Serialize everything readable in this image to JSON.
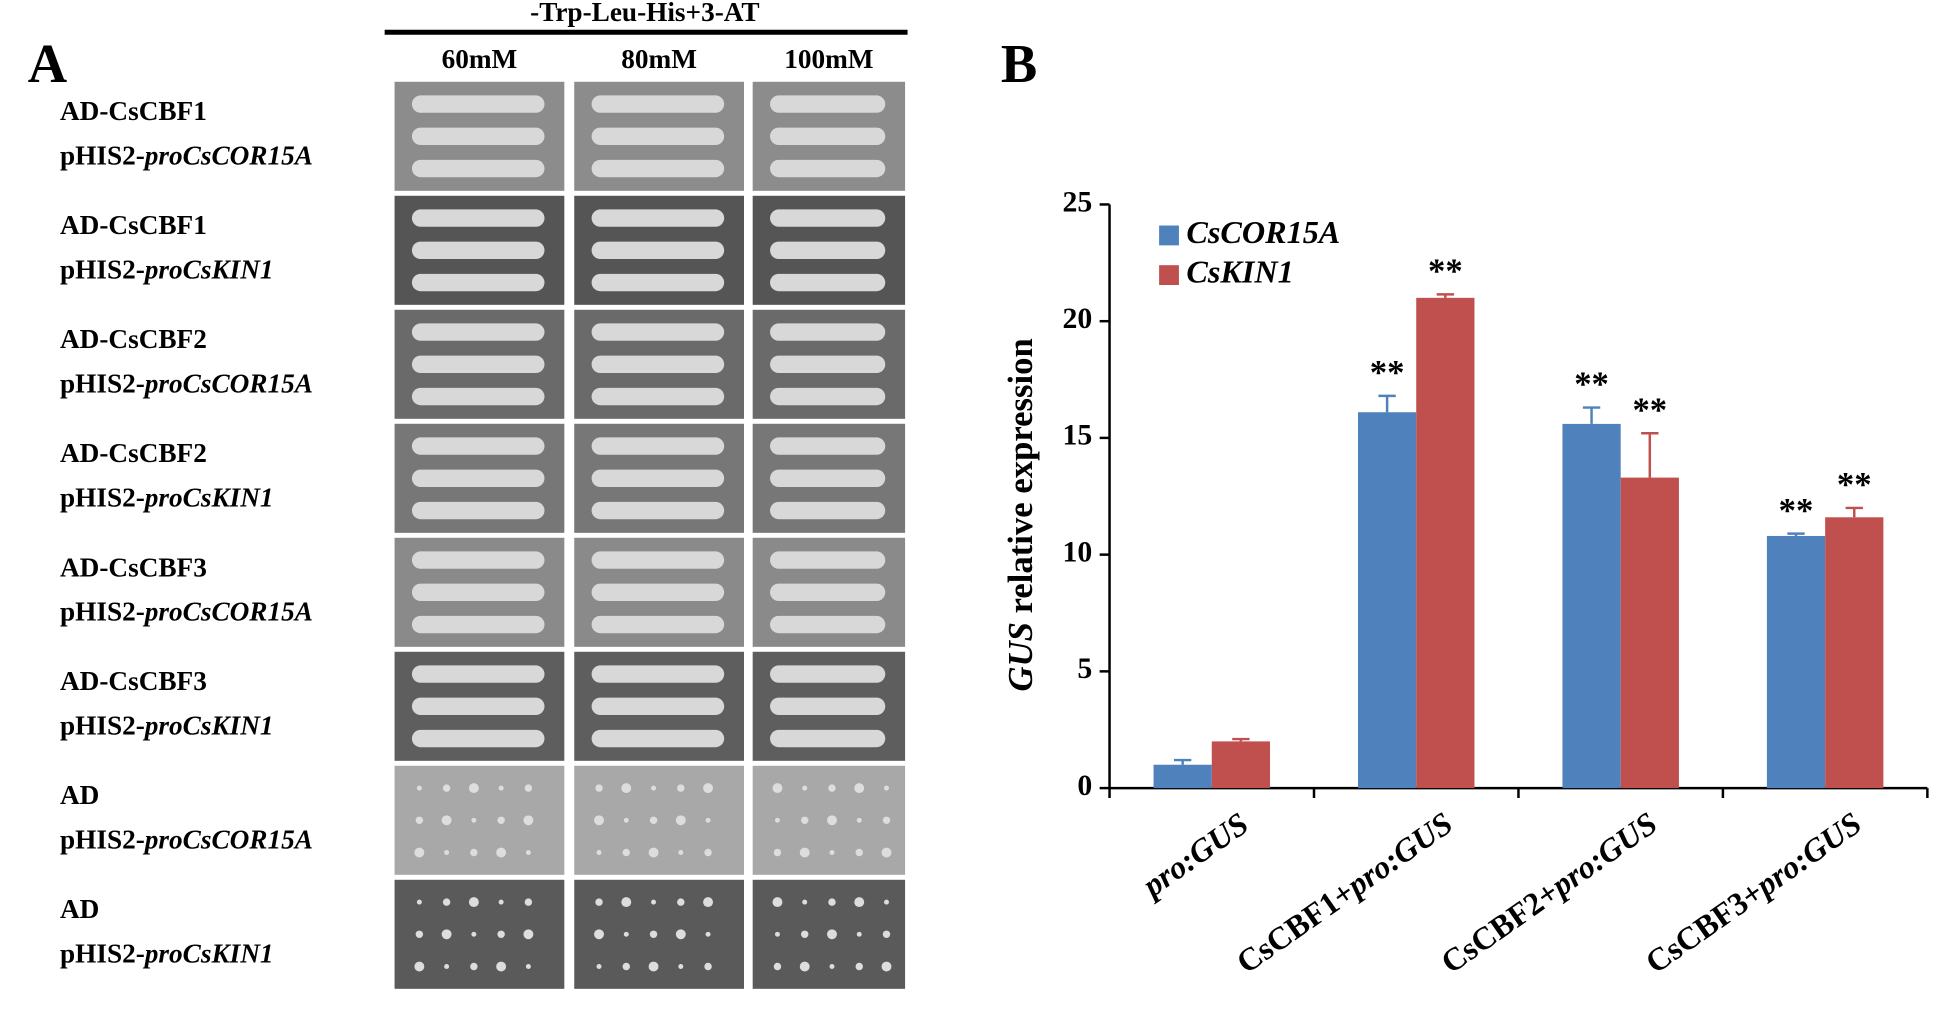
{
  "panel_a": {
    "label": "A",
    "header": "-Trp-Leu-His+3-AT",
    "columns": [
      "60mM",
      "80mM",
      "100mM"
    ],
    "rows": [
      {
        "line1": "AD-CsCBF1",
        "line2": "pHIS2-proCsCOR15A"
      },
      {
        "line1": "AD-CsCBF1",
        "line2": "pHIS2-proCsKIN1"
      },
      {
        "line1": "AD-CsCBF2",
        "line2": "pHIS2-proCsCOR15A"
      },
      {
        "line1": "AD-CsCBF2",
        "line2": "pHIS2-proCsKIN1"
      },
      {
        "line1": "AD-CsCBF3",
        "line2": "pHIS2-proCsCOR15A"
      },
      {
        "line1": "AD-CsCBF3",
        "line2": "pHIS2-proCsKIN1"
      },
      {
        "line1": "AD",
        "line2": "pHIS2-proCsCOR15A"
      },
      {
        "line1": "AD",
        "line2": "pHIS2-proCsKIN1"
      }
    ]
  },
  "panel_b_label": "B",
  "chart_data": {
    "type": "bar",
    "y_label": "GUS relative expression",
    "categories": [
      "pro:GUS",
      "CsCBF1+pro:GUS",
      "CsCBF2+pro:GUS",
      "CsCBF3+pro:GUS"
    ],
    "series": [
      {
        "name": "CsCOR15A",
        "color": "#4f81bd",
        "values": [
          1.0,
          16.1,
          15.6,
          10.8
        ],
        "errors": [
          0.2,
          0.7,
          0.7,
          0.1
        ],
        "significance": [
          null,
          "**",
          "**",
          "**"
        ]
      },
      {
        "name": "CsKIN1",
        "color": "#c0504d",
        "values": [
          2.0,
          21.0,
          13.3,
          11.6
        ],
        "errors": [
          0.1,
          0.15,
          1.9,
          0.4
        ],
        "significance": [
          null,
          "**",
          "**",
          "**"
        ]
      }
    ],
    "ylim": [
      0,
      25
    ],
    "yticks": [
      0,
      5,
      10,
      15,
      20,
      25
    ],
    "legend": "top-left",
    "grid": false
  }
}
